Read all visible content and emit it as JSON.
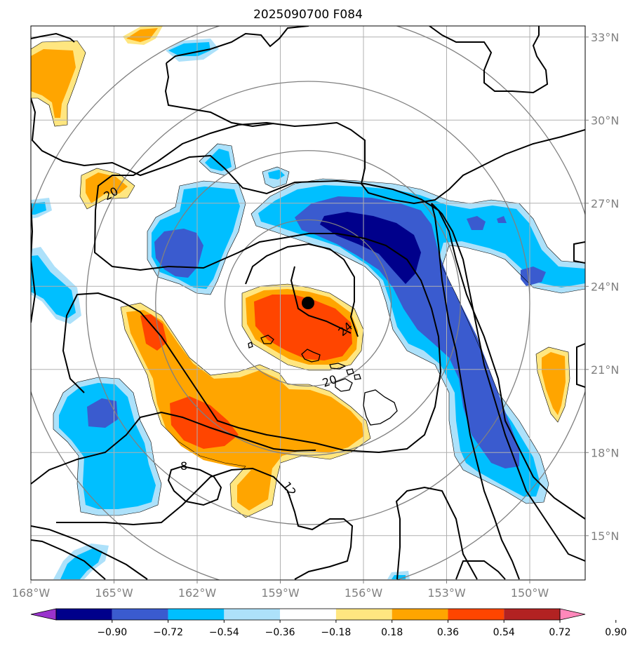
{
  "chart_data": {
    "type": "map",
    "title": "2025090700 F084",
    "x_ticks": [
      "168°W",
      "165°W",
      "162°W",
      "159°W",
      "156°W",
      "153°W",
      "150°W"
    ],
    "x_values": [
      -168,
      -165,
      -162,
      -159,
      -156,
      -153,
      -150
    ],
    "y_ticks": [
      "15°N",
      "18°N",
      "21°N",
      "24°N",
      "27°N",
      "30°N",
      "33°N"
    ],
    "y_values": [
      15,
      18,
      21,
      24,
      27,
      30,
      33
    ],
    "lon_range": [
      -168,
      -148
    ],
    "lat_range": [
      13.4,
      33.4
    ],
    "storm_center": {
      "lon": -158,
      "lat": 23.4
    },
    "range_rings_deg": [
      3,
      5.5,
      8,
      10.5
    ],
    "grid": true,
    "colorbar": {
      "labels": [
        "−0.90",
        "−0.72",
        "−0.54",
        "−0.36",
        "−0.18",
        "0.18",
        "0.36",
        "0.54",
        "0.72",
        "0.90"
      ],
      "colors": [
        "#9933cc",
        "#00008b",
        "#3a5bcf",
        "#00bfff",
        "#ade1fa",
        "#ffffff",
        "#ffe680",
        "#ffa500",
        "#ff4500",
        "#b22222",
        "#ff88bb"
      ]
    },
    "contour_labels": [
      "20",
      "24",
      "20",
      "8",
      "12"
    ],
    "shading_levels": {
      "pos_light": "#ffe680",
      "pos_mid": "#ffa500",
      "pos_high": "#ff4500",
      "neg_light": "#ade1fa",
      "neg_mid": "#00bfff",
      "neg_high": "#3a5bcf",
      "neg_max": "#00008b"
    }
  }
}
